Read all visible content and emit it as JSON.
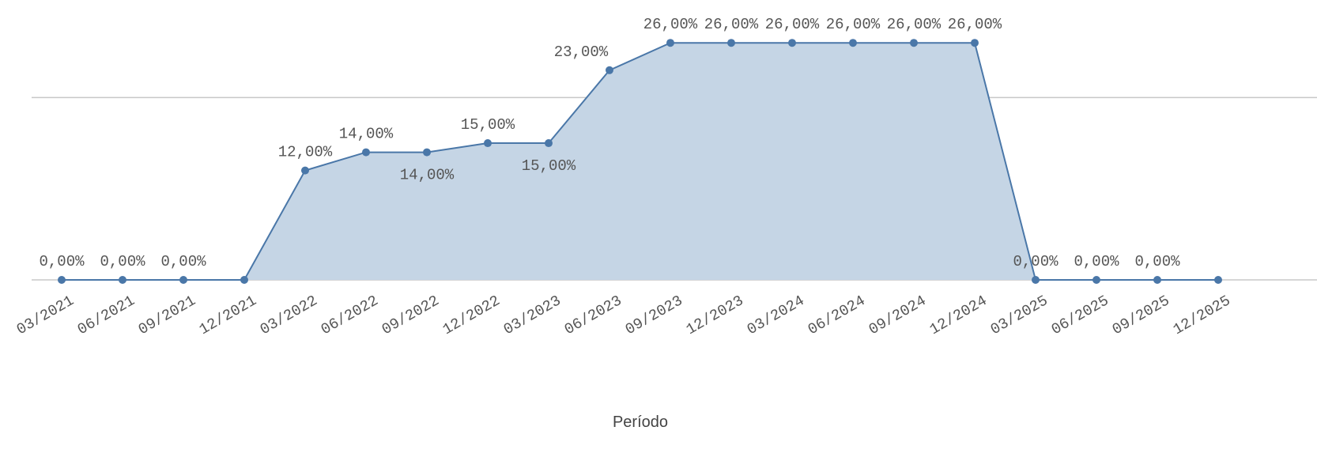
{
  "chart_data": {
    "type": "area",
    "xlabel": "Período",
    "categories": [
      "03/2021",
      "06/2021",
      "09/2021",
      "12/2021",
      "03/2022",
      "06/2022",
      "09/2022",
      "12/2022",
      "03/2023",
      "06/2023",
      "09/2023",
      "12/2023",
      "03/2024",
      "06/2024",
      "09/2024",
      "12/2024",
      "03/2025",
      "06/2025",
      "09/2025",
      "12/2025"
    ],
    "values": [
      0,
      0,
      0,
      0,
      12,
      14,
      14,
      15,
      15,
      23,
      26,
      26,
      26,
      26,
      26,
      26,
      0,
      0,
      0,
      0
    ],
    "value_labels": [
      "0,00%",
      "0,00%",
      "0,00%",
      null,
      "12,00%",
      "14,00%",
      "14,00%",
      "15,00%",
      "15,00%",
      "23,00%",
      "26,00%",
      "26,00%",
      "26,00%",
      "26,00%",
      "26,00%",
      "26,00%",
      "0,00%",
      "0,00%",
      "0,00%",
      null
    ],
    "color": "#4a77a8",
    "fill": "#c5d5e5",
    "ylim": [
      0,
      30.7
    ],
    "yticks": [
      0,
      20
    ],
    "grid": true
  }
}
